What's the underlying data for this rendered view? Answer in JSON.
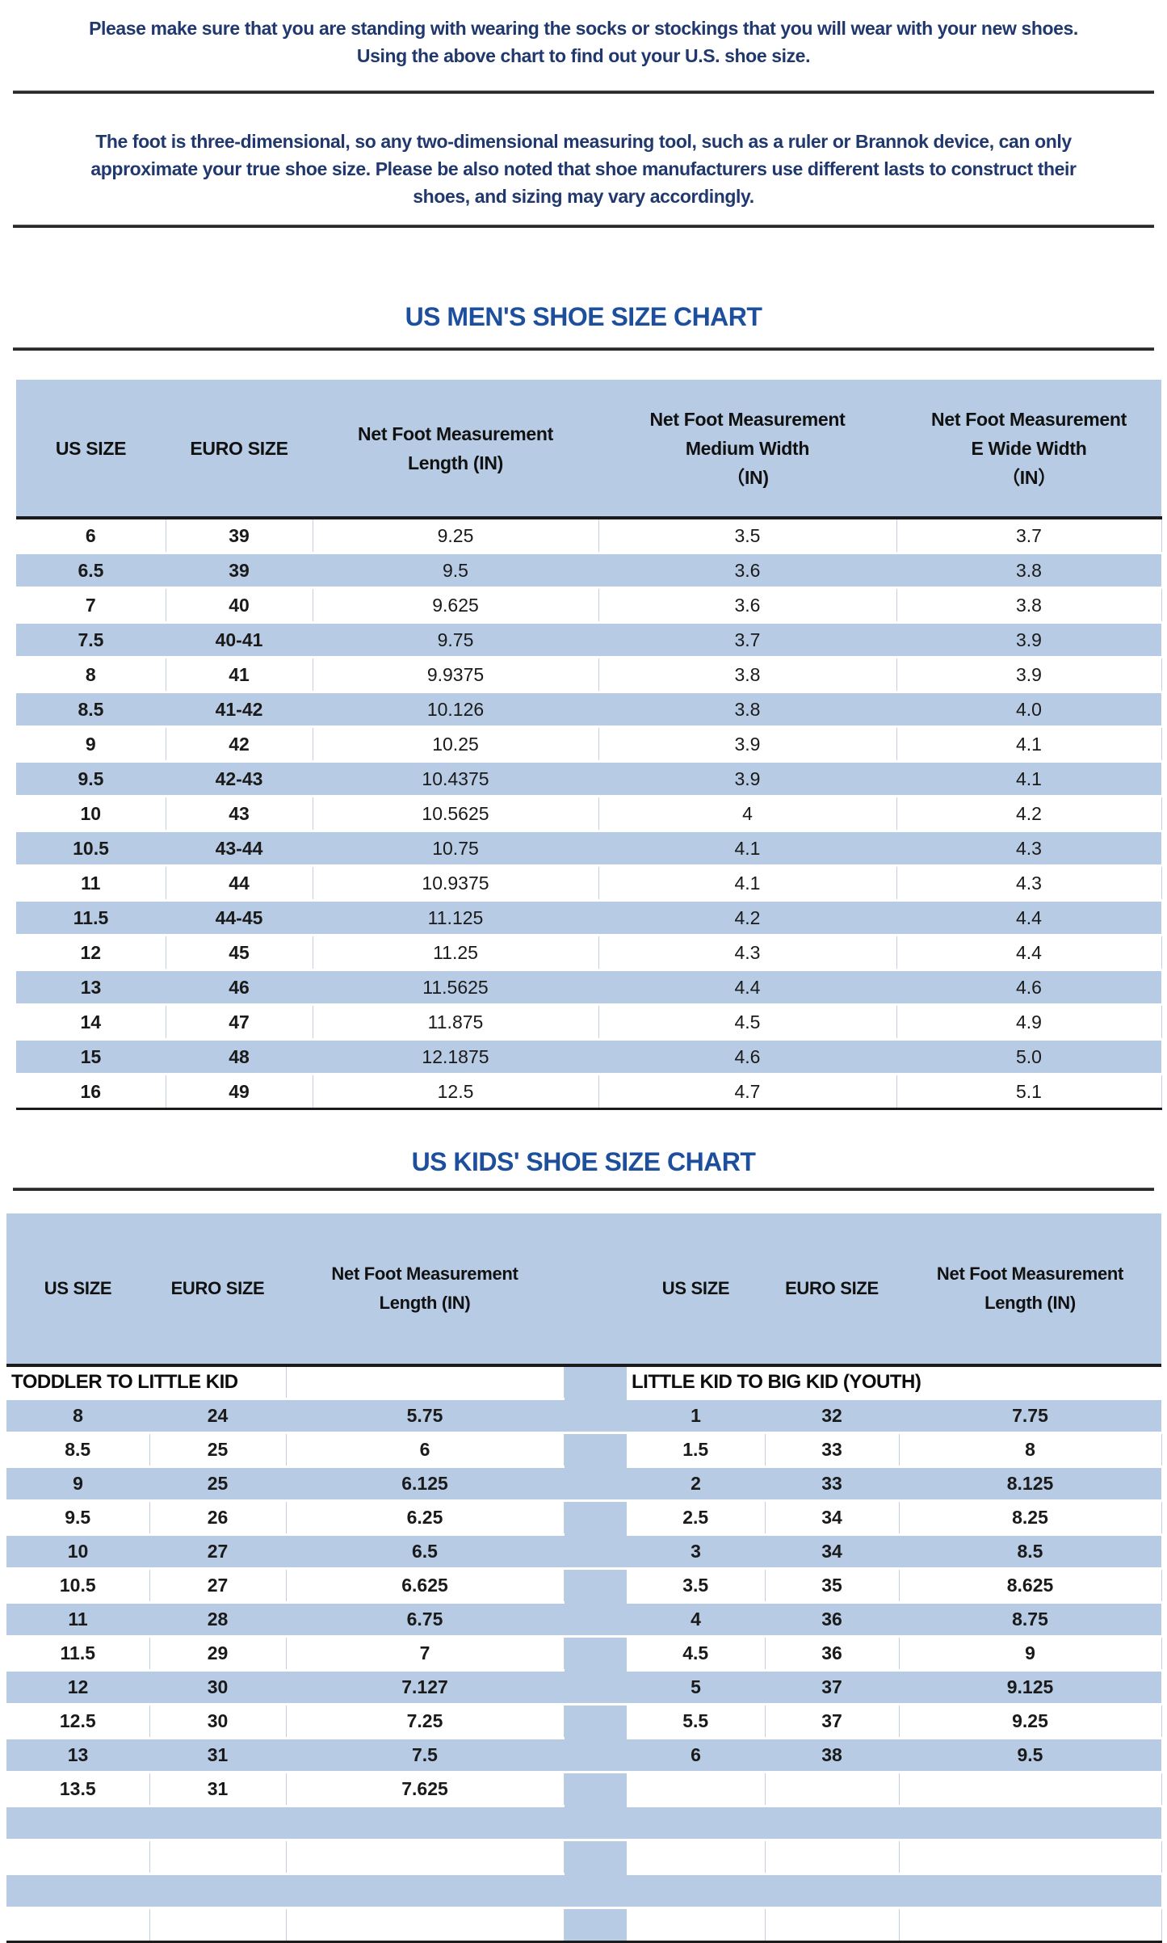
{
  "intro": {
    "line1": "Please make sure that you are standing with wearing the socks or stockings that you will wear with your new shoes.",
    "line2": "Using the above chart to find out your U.S. shoe size."
  },
  "note": {
    "line1": "The foot is three-dimensional, so any two-dimensional measuring tool, such as a ruler or Brannok device, can only",
    "line2": "approximate your true shoe size. Please be also noted that shoe manufacturers use different lasts to construct their",
    "line3": "shoes, and sizing may vary accordingly."
  },
  "mens_chart": {
    "title": "US MEN'S SHOE SIZE CHART",
    "headers": [
      "US SIZE",
      "EURO SIZE",
      "Net Foot Measurement\nLength (IN)",
      "Net Foot Measurement\nMedium Width\n（IN)",
      "Net Foot Measurement\nE Wide Width\n（IN）"
    ],
    "rows": [
      [
        "6",
        "39",
        "9.25",
        "3.5",
        "3.7"
      ],
      [
        "6.5",
        "39",
        "9.5",
        "3.6",
        "3.8"
      ],
      [
        "7",
        "40",
        "9.625",
        "3.6",
        "3.8"
      ],
      [
        "7.5",
        "40-41",
        "9.75",
        "3.7",
        "3.9"
      ],
      [
        "8",
        "41",
        "9.9375",
        "3.8",
        "3.9"
      ],
      [
        "8.5",
        "41-42",
        "10.126",
        "3.8",
        "4.0"
      ],
      [
        "9",
        "42",
        "10.25",
        "3.9",
        "4.1"
      ],
      [
        "9.5",
        "42-43",
        "10.4375",
        "3.9",
        "4.1"
      ],
      [
        "10",
        "43",
        "10.5625",
        "4",
        "4.2"
      ],
      [
        "10.5",
        "43-44",
        "10.75",
        "4.1",
        "4.3"
      ],
      [
        "11",
        "44",
        "10.9375",
        "4.1",
        "4.3"
      ],
      [
        "11.5",
        "44-45",
        "11.125",
        "4.2",
        "4.4"
      ],
      [
        "12",
        "45",
        "11.25",
        "4.3",
        "4.4"
      ],
      [
        "13",
        "46",
        "11.5625",
        "4.4",
        "4.6"
      ],
      [
        "14",
        "47",
        "11.875",
        "4.5",
        "4.9"
      ],
      [
        "15",
        "48",
        "12.1875",
        "4.6",
        "5.0"
      ],
      [
        "16",
        "49",
        "12.5",
        "4.7",
        "5.1"
      ]
    ]
  },
  "kids_chart": {
    "title": "US KIDS' SHOE SIZE CHART",
    "left_headers": [
      "US SIZE",
      "EURO SIZE",
      "Net Foot Measurement\nLength (IN)"
    ],
    "right_headers": [
      "US SIZE",
      "EURO SIZE",
      "Net Foot Measurement\nLength (IN)"
    ],
    "left_subheader": "TODDLER TO LITTLE KID",
    "right_subheader": "LITTLE KID TO BIG KID (YOUTH)",
    "rows": [
      {
        "left": [
          "8",
          "24",
          "5.75"
        ],
        "right": [
          "1",
          "32",
          "7.75"
        ]
      },
      {
        "left": [
          "8.5",
          "25",
          "6"
        ],
        "right": [
          "1.5",
          "33",
          "8"
        ]
      },
      {
        "left": [
          "9",
          "25",
          "6.125"
        ],
        "right": [
          "2",
          "33",
          "8.125"
        ]
      },
      {
        "left": [
          "9.5",
          "26",
          "6.25"
        ],
        "right": [
          "2.5",
          "34",
          "8.25"
        ]
      },
      {
        "left": [
          "10",
          "27",
          "6.5"
        ],
        "right": [
          "3",
          "34",
          "8.5"
        ]
      },
      {
        "left": [
          "10.5",
          "27",
          "6.625"
        ],
        "right": [
          "3.5",
          "35",
          "8.625"
        ]
      },
      {
        "left": [
          "11",
          "28",
          "6.75"
        ],
        "right": [
          "4",
          "36",
          "8.75"
        ]
      },
      {
        "left": [
          "11.5",
          "29",
          "7"
        ],
        "right": [
          "4.5",
          "36",
          "9"
        ]
      },
      {
        "left": [
          "12",
          "30",
          "7.127"
        ],
        "right": [
          "5",
          "37",
          "9.125"
        ]
      },
      {
        "left": [
          "12.5",
          "30",
          "7.25"
        ],
        "right": [
          "5.5",
          "37",
          "9.25"
        ]
      },
      {
        "left": [
          "13",
          "31",
          "7.5"
        ],
        "right": [
          "6",
          "38",
          "9.5"
        ]
      },
      {
        "left": [
          "13.5",
          "31",
          "7.625"
        ],
        "right": [
          "",
          "",
          ""
        ]
      },
      {
        "left": [
          "",
          "",
          ""
        ],
        "right": [
          "",
          "",
          ""
        ]
      },
      {
        "left": [
          "",
          "",
          ""
        ],
        "right": [
          "",
          "",
          ""
        ]
      },
      {
        "left": [
          "",
          "",
          ""
        ],
        "right": [
          "",
          "",
          ""
        ]
      },
      {
        "left": [
          "",
          "",
          ""
        ],
        "right": [
          "",
          "",
          ""
        ]
      }
    ]
  },
  "colors": {
    "stripe_blue": "#b7cce4",
    "title_blue": "#1d4f9c",
    "paragraph_navy": "#20386e",
    "rule_dark": "#2a2a2a"
  }
}
